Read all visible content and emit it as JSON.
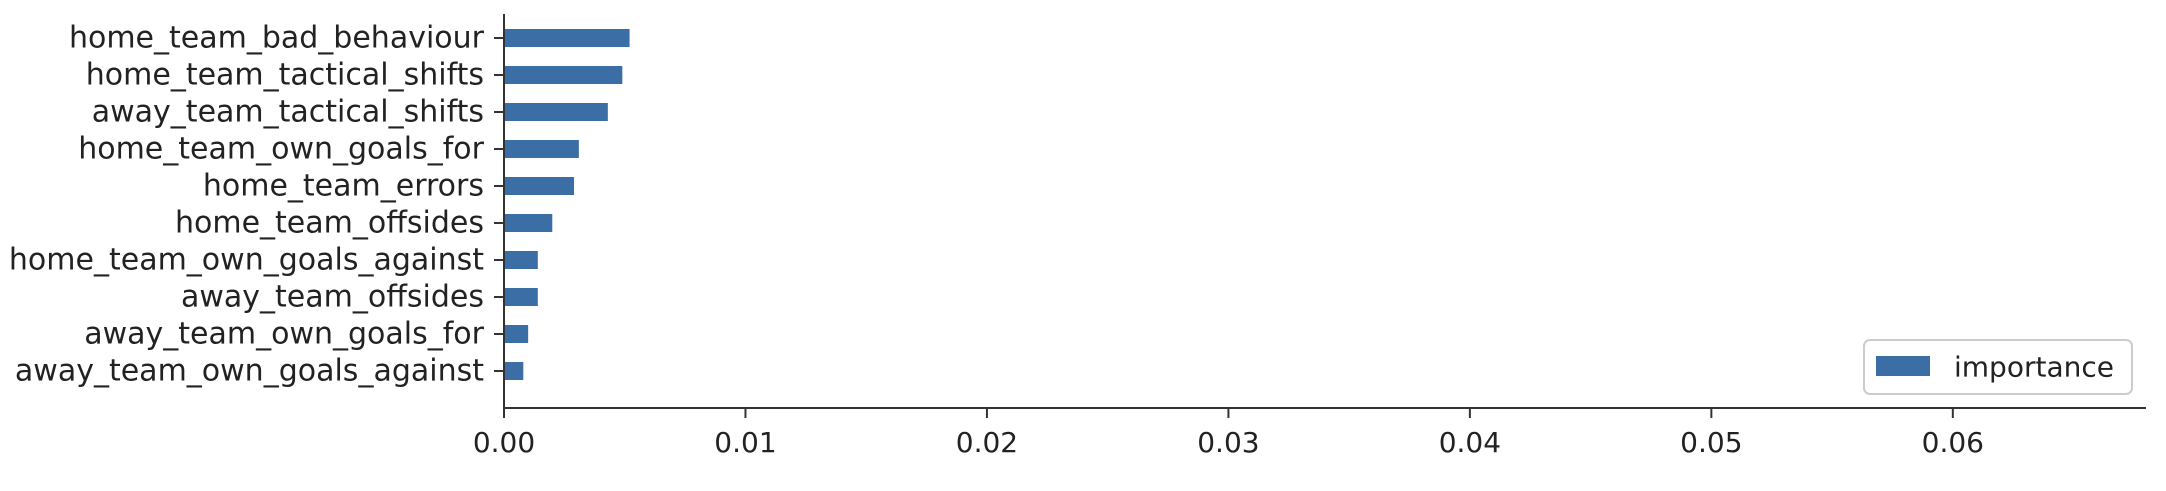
{
  "chart_data": {
    "type": "bar",
    "orientation": "horizontal",
    "categories": [
      "home_team_bad_behaviour",
      "home_team_tactical_shifts",
      "away_team_tactical_shifts",
      "home_team_own_goals_for",
      "home_team_errors",
      "home_team_offsides",
      "home_team_own_goals_against",
      "away_team_offsides",
      "away_team_own_goals_for",
      "away_team_own_goals_against"
    ],
    "series": [
      {
        "name": "importance",
        "color": "#3a6ea5",
        "values": [
          0.0052,
          0.0049,
          0.0043,
          0.0031,
          0.0029,
          0.002,
          0.0014,
          0.0014,
          0.001,
          0.0008
        ]
      }
    ],
    "xlim": [
      0.0,
      0.068
    ],
    "xticks": [
      0.0,
      0.01,
      0.02,
      0.03,
      0.04,
      0.05,
      0.06
    ],
    "xtick_labels": [
      "0.00",
      "0.01",
      "0.02",
      "0.03",
      "0.04",
      "0.05",
      "0.06"
    ],
    "grid": false,
    "legend_position": "lower-right",
    "title": "",
    "xlabel": "",
    "ylabel": ""
  }
}
